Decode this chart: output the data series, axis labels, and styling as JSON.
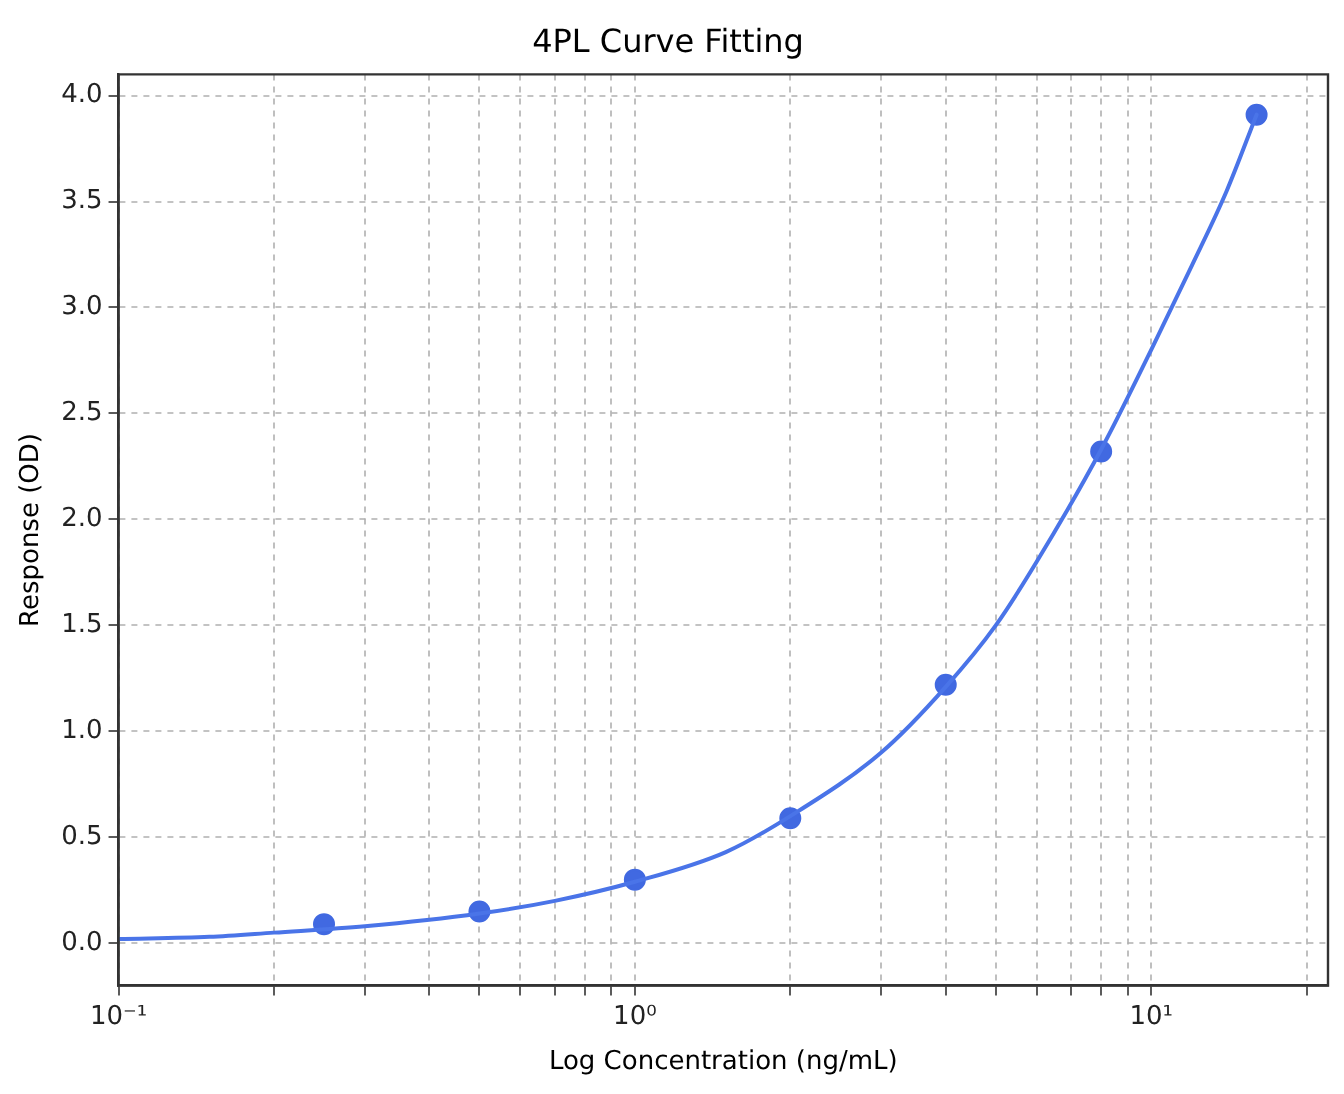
{
  "chart_data": {
    "type": "scatter",
    "title": "4PL Curve Fitting",
    "xlabel": "Log Concentration (ng/mL)",
    "ylabel": "Response (OD)",
    "log": "x",
    "grid": true,
    "legend": false,
    "xlim": [
      0.1,
      22
    ],
    "xticks": [
      {
        "value": 0.1,
        "label": "10⁻¹"
      },
      {
        "value": 0.2,
        "label": null
      },
      {
        "value": 0.3,
        "label": null
      },
      {
        "value": 0.4,
        "label": null
      },
      {
        "value": 0.5,
        "label": null
      },
      {
        "value": 0.6,
        "label": null
      },
      {
        "value": 0.7,
        "label": null
      },
      {
        "value": 0.8,
        "label": null
      },
      {
        "value": 0.9,
        "label": null
      },
      {
        "value": 1,
        "label": "10⁰"
      },
      {
        "value": 2,
        "label": null
      },
      {
        "value": 3,
        "label": null
      },
      {
        "value": 4,
        "label": null
      },
      {
        "value": 5,
        "label": null
      },
      {
        "value": 6,
        "label": null
      },
      {
        "value": 7,
        "label": null
      },
      {
        "value": 8,
        "label": null
      },
      {
        "value": 9,
        "label": null
      },
      {
        "value": 10,
        "label": "10¹"
      },
      {
        "value": 20,
        "label": null
      }
    ],
    "ylim": [
      -0.2,
      4.1
    ],
    "yticks": [
      {
        "value": 0,
        "label": "0.0"
      },
      {
        "value": 0.5,
        "label": "0.5"
      },
      {
        "value": 1,
        "label": "1.0"
      },
      {
        "value": 1.5,
        "label": "1.5"
      },
      {
        "value": 2,
        "label": "2.0"
      },
      {
        "value": 2.5,
        "label": "2.5"
      },
      {
        "value": 3,
        "label": "3.0"
      },
      {
        "value": 3.5,
        "label": "3.5"
      },
      {
        "value": 4,
        "label": "4.0"
      }
    ],
    "series": [
      {
        "type": "line",
        "color": "#4a74e8",
        "marker": "none",
        "x": [
          0.1,
          0.15,
          0.2,
          0.3,
          0.5,
          0.7,
          1,
          1.5,
          2,
          3,
          4,
          5,
          6,
          8,
          10,
          12,
          14,
          16
        ],
        "values": [
          0.02,
          0.03,
          0.05,
          0.08,
          0.14,
          0.2,
          0.29,
          0.43,
          0.6,
          0.9,
          1.21,
          1.5,
          1.8,
          2.33,
          2.8,
          3.2,
          3.55,
          3.91
        ]
      },
      {
        "type": "scatter",
        "color": "#4169e1",
        "marker": "circle",
        "x": [
          0.25,
          0.5,
          1,
          2,
          4,
          8,
          16
        ],
        "values": [
          0.09,
          0.15,
          0.3,
          0.59,
          1.22,
          2.32,
          3.91
        ]
      }
    ]
  }
}
